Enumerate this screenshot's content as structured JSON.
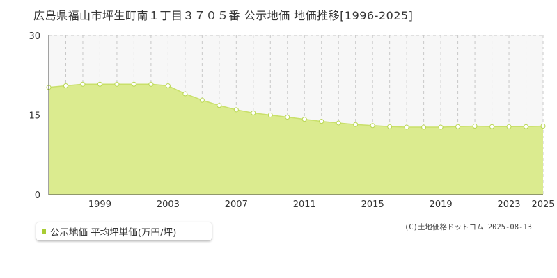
{
  "title": "広島県福山市坪生町南１丁目３７０５番 公示地価 地価推移[1996-2025]",
  "legend": {
    "label": "公示地価 平均坪単価(万円/坪)"
  },
  "credit": "(C)土地価格ドットコム 2025-08-13",
  "colors": {
    "fill": "#dbeb8f",
    "line": "#c9e06a",
    "marker_edge": "#b8d650",
    "legend_marker": "#a8cc33"
  },
  "chart_data": {
    "type": "area",
    "x": [
      1996,
      1997,
      1998,
      1999,
      2000,
      2001,
      2002,
      2003,
      2004,
      2005,
      2006,
      2007,
      2008,
      2009,
      2010,
      2011,
      2012,
      2013,
      2014,
      2015,
      2016,
      2017,
      2018,
      2019,
      2020,
      2021,
      2022,
      2023,
      2024,
      2025
    ],
    "series": [
      {
        "values": [
          20.2,
          20.5,
          20.8,
          20.8,
          20.8,
          20.8,
          20.8,
          20.5,
          19.0,
          17.8,
          16.8,
          16.0,
          15.4,
          15.0,
          14.6,
          14.2,
          13.8,
          13.5,
          13.2,
          13.0,
          12.8,
          12.7,
          12.7,
          12.7,
          12.8,
          12.9,
          12.8,
          12.8,
          12.8,
          12.9
        ]
      }
    ],
    "xticks": [
      1999,
      2003,
      2007,
      2011,
      2015,
      2019,
      2023,
      2025
    ],
    "yticks": [
      0,
      15,
      30
    ],
    "ylim": [
      0,
      30
    ],
    "xlim": [
      1996,
      2025
    ],
    "grid": true
  }
}
